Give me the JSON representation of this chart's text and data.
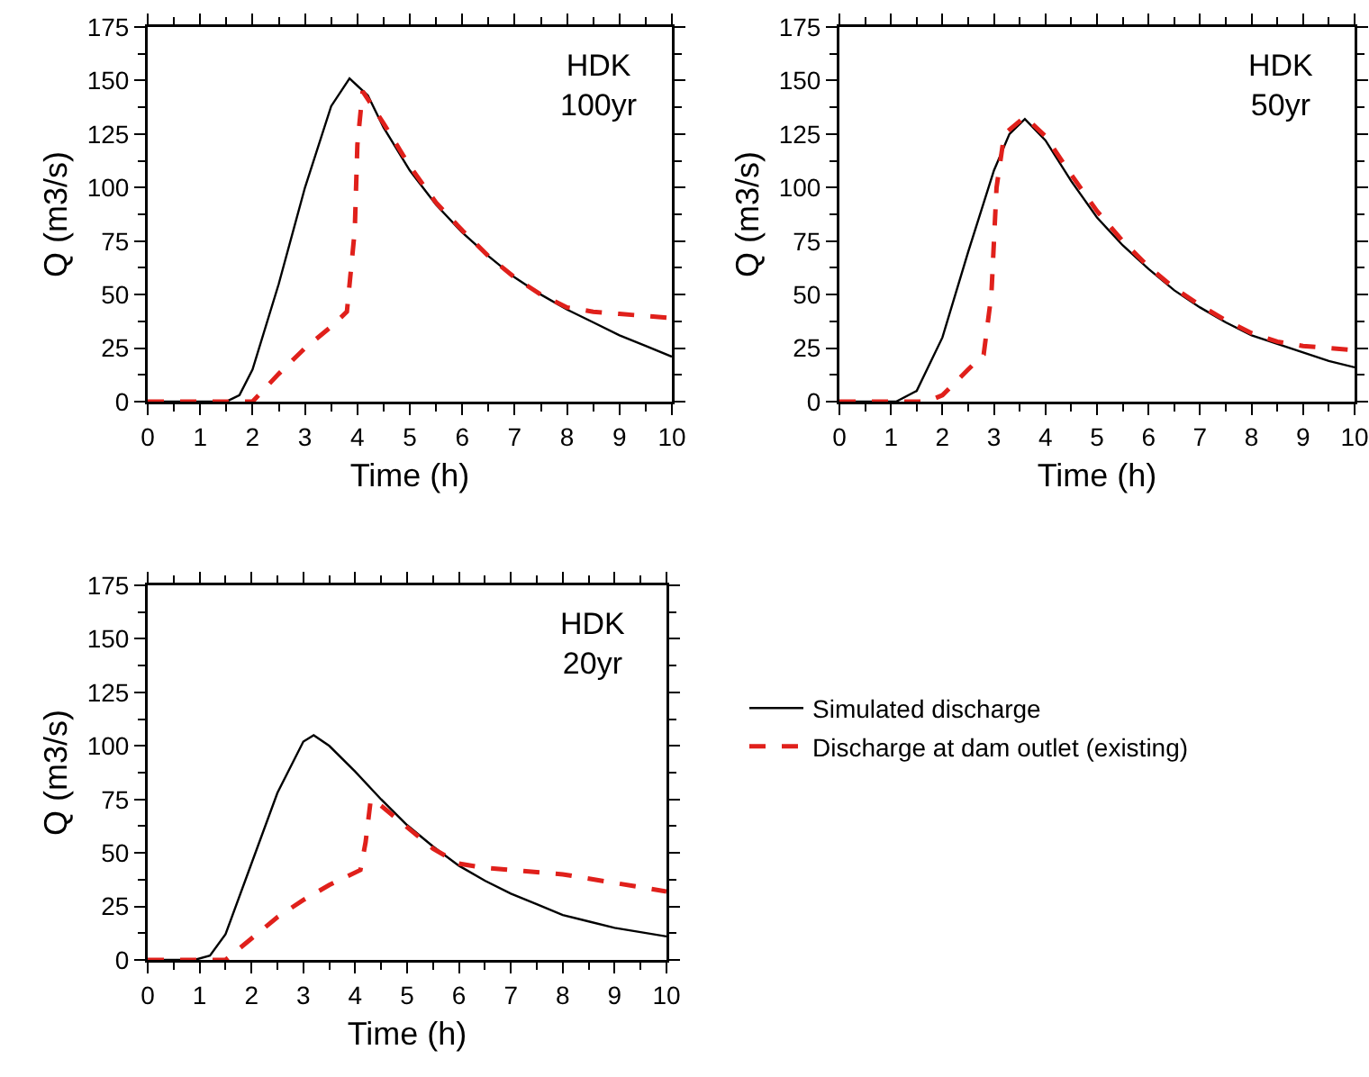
{
  "chart_data": [
    {
      "type": "line",
      "xlabel": "Time (h)",
      "ylabel": "Q (m3/s)",
      "annotations": [
        "HDK\n100yr"
      ],
      "xlim": [
        0,
        10
      ],
      "xticks": [
        0,
        1,
        2,
        3,
        4,
        5,
        6,
        7,
        8,
        9,
        10
      ],
      "ylim": [
        0,
        175
      ],
      "yticks": [
        0,
        25,
        50,
        75,
        100,
        125,
        150,
        175
      ],
      "grid": false,
      "series": [
        {
          "color": "#000000",
          "line_style": "solid",
          "x": [
            0,
            0.5,
            1,
            1.5,
            1.75,
            2,
            2.5,
            3,
            3.5,
            3.85,
            4.2,
            4.5,
            5,
            5.5,
            6,
            6.5,
            7,
            7.5,
            8,
            8.5,
            9,
            9.5,
            10
          ],
          "values": [
            0,
            0,
            0,
            0,
            3,
            15,
            55,
            100,
            138,
            151,
            143,
            128,
            108,
            92,
            79,
            68,
            58,
            50,
            43,
            37,
            31,
            26,
            21
          ]
        },
        {
          "color": "#e0201b",
          "line_style": "dashed",
          "x": [
            0,
            0.5,
            1,
            1.5,
            2,
            2.5,
            3,
            3.5,
            3.8,
            3.95,
            4,
            4.1,
            4.5,
            5,
            5.5,
            6,
            6.5,
            7,
            7.5,
            8,
            8.5,
            9,
            9.5,
            10
          ],
          "values": [
            0,
            0,
            0,
            0,
            0,
            13,
            25,
            35,
            42,
            80,
            120,
            145,
            130,
            110,
            93,
            80,
            68,
            58,
            50,
            44,
            42,
            41,
            40,
            39
          ]
        }
      ]
    },
    {
      "type": "line",
      "xlabel": "Time (h)",
      "ylabel": "Q (m3/s)",
      "annotations": [
        "HDK\n50yr"
      ],
      "xlim": [
        0,
        10
      ],
      "xticks": [
        0,
        1,
        2,
        3,
        4,
        5,
        6,
        7,
        8,
        9,
        10
      ],
      "ylim": [
        0,
        175
      ],
      "yticks": [
        0,
        25,
        50,
        75,
        100,
        125,
        150,
        175
      ],
      "grid": false,
      "series": [
        {
          "color": "#000000",
          "line_style": "solid",
          "x": [
            0,
            0.5,
            1.1,
            1.5,
            2,
            2.5,
            3,
            3.3,
            3.6,
            4,
            4.5,
            5,
            5.5,
            6,
            6.5,
            7,
            7.5,
            8,
            8.5,
            9,
            9.5,
            10
          ],
          "values": [
            0,
            0,
            0,
            5,
            30,
            70,
            108,
            125,
            132,
            122,
            103,
            86,
            73,
            62,
            52,
            44,
            37,
            31,
            27,
            23,
            19,
            16
          ]
        },
        {
          "color": "#e0201b",
          "line_style": "dashed",
          "x": [
            0,
            0.5,
            1,
            1.7,
            2,
            2.5,
            2.8,
            2.95,
            3.05,
            3.2,
            3.6,
            4,
            4.5,
            5,
            5.5,
            6,
            6.5,
            7,
            7.5,
            8,
            8.5,
            9,
            9.5,
            10
          ],
          "values": [
            0,
            0,
            0,
            0,
            3,
            15,
            22,
            50,
            100,
            125,
            133,
            124,
            106,
            89,
            75,
            63,
            53,
            45,
            38,
            32,
            28,
            26,
            25,
            24
          ]
        }
      ]
    },
    {
      "type": "line",
      "xlabel": "Time (h)",
      "ylabel": "Q (m3/s)",
      "annotations": [
        "HDK\n20yr"
      ],
      "xlim": [
        0,
        10
      ],
      "xticks": [
        0,
        1,
        2,
        3,
        4,
        5,
        6,
        7,
        8,
        9,
        10
      ],
      "ylim": [
        0,
        175
      ],
      "yticks": [
        0,
        25,
        50,
        75,
        100,
        125,
        150,
        175
      ],
      "grid": false,
      "legend": "right",
      "series": [
        {
          "name": "Simulated discharge",
          "color": "#000000",
          "line_style": "solid",
          "x": [
            0,
            0.5,
            0.9,
            1.2,
            1.5,
            2,
            2.5,
            3,
            3.2,
            3.5,
            4,
            4.5,
            5,
            5.5,
            6,
            6.5,
            7,
            7.5,
            8,
            8.5,
            9,
            9.5,
            10
          ],
          "values": [
            0,
            0,
            0,
            2,
            12,
            45,
            78,
            102,
            105,
            100,
            88,
            75,
            63,
            53,
            44,
            37,
            31,
            26,
            21,
            18,
            15,
            13,
            11
          ]
        },
        {
          "name": "Discharge at dam outlet (existing)",
          "color": "#e0201b",
          "line_style": "dashed",
          "x": [
            0,
            0.5,
            1,
            1.5,
            2,
            2.5,
            3,
            3.5,
            4.1,
            4.2,
            4.3,
            4.5,
            5,
            5.5,
            6,
            6.5,
            7,
            8,
            9,
            10
          ],
          "values": [
            0,
            0,
            0,
            0,
            10,
            20,
            28,
            35,
            42,
            55,
            75,
            72,
            62,
            52,
            45,
            43,
            42,
            40,
            36,
            32
          ]
        }
      ]
    }
  ]
}
